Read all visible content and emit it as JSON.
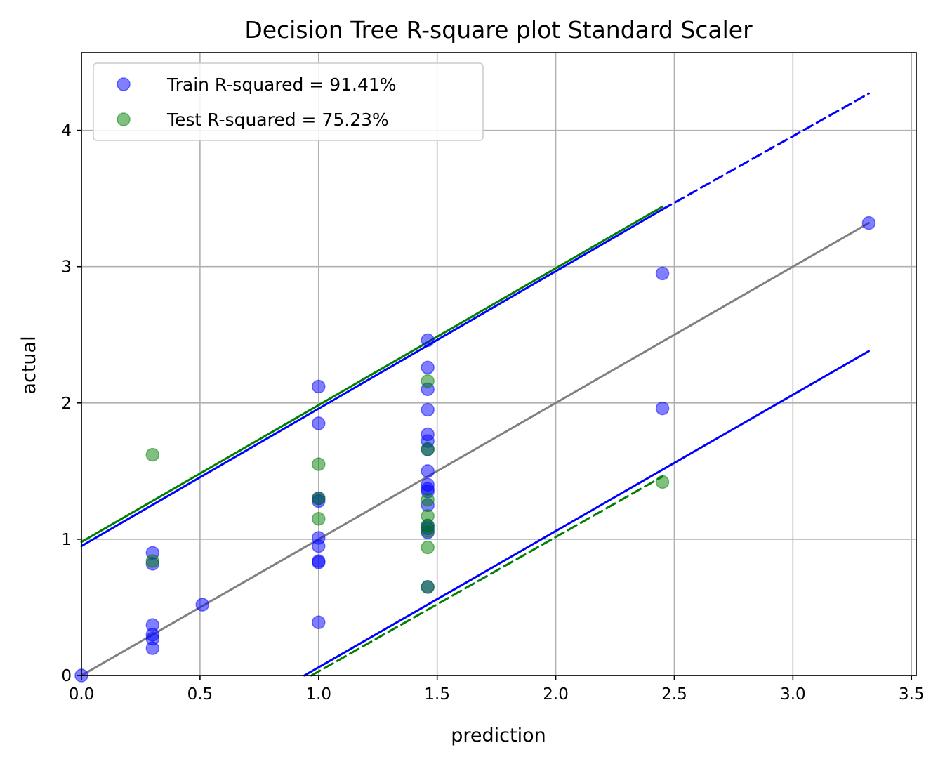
{
  "chart_data": {
    "type": "scatter",
    "title": "Decision Tree R-square plot Standard Scaler",
    "xlabel": "prediction",
    "ylabel": "actual",
    "xlim": [
      0,
      3.52
    ],
    "ylim": [
      0,
      4.57
    ],
    "xticks": [
      "0.0",
      "0.5",
      "1.0",
      "1.5",
      "2.0",
      "2.5",
      "3.0",
      "3.5"
    ],
    "xtick_values": [
      0,
      0.5,
      1.0,
      1.5,
      2.0,
      2.5,
      3.0,
      3.5
    ],
    "yticks": [
      "0",
      "1",
      "2",
      "3",
      "4"
    ],
    "ytick_values": [
      0,
      1,
      2,
      3,
      4
    ],
    "grid": true,
    "legend_position": "top-left",
    "series": [
      {
        "name": "Train R-squared = 91.41%",
        "color": "#0000ff",
        "points": [
          [
            0.0,
            0.0
          ],
          [
            0.3,
            0.2
          ],
          [
            0.3,
            0.27
          ],
          [
            0.3,
            0.3
          ],
          [
            0.3,
            0.37
          ],
          [
            0.3,
            0.82
          ],
          [
            0.3,
            0.9
          ],
          [
            0.51,
            0.52
          ],
          [
            1.0,
            0.39
          ],
          [
            1.0,
            0.83
          ],
          [
            1.0,
            0.84
          ],
          [
            1.0,
            0.95
          ],
          [
            1.0,
            1.01
          ],
          [
            1.0,
            1.28
          ],
          [
            1.0,
            1.3
          ],
          [
            1.0,
            1.85
          ],
          [
            1.0,
            2.12
          ],
          [
            1.46,
            0.65
          ],
          [
            1.46,
            1.05
          ],
          [
            1.46,
            1.08
          ],
          [
            1.46,
            1.1
          ],
          [
            1.46,
            1.25
          ],
          [
            1.46,
            1.35
          ],
          [
            1.46,
            1.37
          ],
          [
            1.46,
            1.4
          ],
          [
            1.46,
            1.5
          ],
          [
            1.46,
            1.66
          ],
          [
            1.46,
            1.72
          ],
          [
            1.46,
            1.77
          ],
          [
            1.46,
            1.95
          ],
          [
            1.46,
            2.1
          ],
          [
            1.46,
            2.26
          ],
          [
            1.46,
            2.46
          ],
          [
            2.45,
            1.96
          ],
          [
            2.45,
            2.95
          ],
          [
            3.32,
            3.32
          ]
        ]
      },
      {
        "name": "Test R-squared = 75.23%",
        "color": "#008000",
        "points": [
          [
            0.3,
            0.84
          ],
          [
            0.3,
            1.62
          ],
          [
            1.0,
            1.15
          ],
          [
            1.0,
            1.3
          ],
          [
            1.0,
            1.55
          ],
          [
            1.46,
            0.65
          ],
          [
            1.46,
            0.94
          ],
          [
            1.46,
            1.06
          ],
          [
            1.46,
            1.1
          ],
          [
            1.46,
            1.17
          ],
          [
            1.46,
            1.29
          ],
          [
            1.46,
            1.66
          ],
          [
            1.46,
            2.16
          ],
          [
            2.45,
            1.42
          ]
        ]
      }
    ],
    "reference_lines": [
      {
        "role": "identity",
        "color": "#808080",
        "style": "solid",
        "from": [
          0,
          0
        ],
        "to": [
          3.32,
          3.32
        ]
      },
      {
        "role": "train-upper",
        "color": "#0000ff",
        "style": "solid",
        "from": [
          0,
          0.95
        ],
        "to": [
          2.45,
          3.42
        ]
      },
      {
        "role": "train-upper-ext",
        "color": "#0000ff",
        "style": "dashed",
        "from": [
          2.45,
          3.42
        ],
        "to": [
          3.32,
          4.27
        ]
      },
      {
        "role": "test-upper",
        "color": "#008000",
        "style": "solid",
        "from": [
          0,
          0.98
        ],
        "to": [
          2.45,
          3.44
        ]
      },
      {
        "role": "train-lower",
        "color": "#0000ff",
        "style": "solid",
        "from": [
          0.94,
          0.0
        ],
        "to": [
          3.32,
          2.38
        ]
      },
      {
        "role": "test-lower",
        "color": "#008000",
        "style": "dashed",
        "from": [
          0.97,
          0.0
        ],
        "to": [
          2.45,
          1.46
        ]
      }
    ]
  }
}
